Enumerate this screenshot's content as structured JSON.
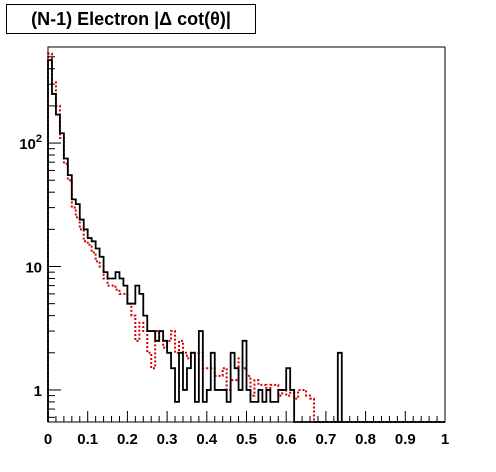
{
  "chart_data": {
    "type": "histogram",
    "title": "(N-1) Electron |Δ cot(θ)|",
    "xlabel": "",
    "ylabel": "",
    "xlim": [
      0,
      1
    ],
    "ylim": [
      0.55,
      600
    ],
    "yscale": "log",
    "grid": false,
    "legend": "none",
    "x_ticks": [
      {
        "v": 0,
        "label": "0"
      },
      {
        "v": 0.1,
        "label": "0.1"
      },
      {
        "v": 0.2,
        "label": "0.2"
      },
      {
        "v": 0.3,
        "label": "0.3"
      },
      {
        "v": 0.4,
        "label": "0.4"
      },
      {
        "v": 0.5,
        "label": "0.5"
      },
      {
        "v": 0.6,
        "label": "0.6"
      },
      {
        "v": 0.7,
        "label": "0.7"
      },
      {
        "v": 0.8,
        "label": "0.8"
      },
      {
        "v": 0.9,
        "label": "0.9"
      },
      {
        "v": 1,
        "label": "1"
      }
    ],
    "y_ticks": [
      {
        "v": 1,
        "label": "1"
      },
      {
        "v": 10,
        "label": "10"
      },
      {
        "v": 100,
        "label": "10^2"
      }
    ],
    "bin_width": 0.01,
    "series": [
      {
        "color": "#000000",
        "style": "solid",
        "values": [
          470,
          250,
          170,
          120,
          75,
          55,
          35,
          32,
          24,
          20,
          17,
          16,
          14,
          12,
          9,
          8,
          8,
          9,
          8,
          7,
          5,
          5,
          7,
          6,
          4,
          3,
          3,
          2.5,
          3,
          2.5,
          2,
          1.5,
          0.8,
          2,
          1,
          1.5,
          2,
          0.8,
          3,
          0.8,
          1,
          2,
          1,
          1,
          1,
          0.8,
          2,
          1.5,
          1,
          2.5,
          1,
          0.8,
          0.8,
          1,
          0.8,
          1,
          0.8,
          0.8,
          1,
          1,
          1.5,
          1,
          0,
          0,
          0,
          0,
          0,
          0,
          0,
          0,
          0,
          0,
          0,
          0,
          0,
          0,
          0,
          0,
          0,
          0,
          0,
          0,
          0,
          0,
          0,
          0,
          0,
          0,
          0,
          0,
          0,
          0,
          0,
          0,
          0,
          0,
          0,
          0,
          0,
          0
        ],
        "spikes": [
          {
            "x": 0.73,
            "value": 2
          }
        ]
      },
      {
        "color": "#d40000",
        "style": "dotted",
        "values": [
          530,
          310,
          200,
          110,
          68,
          50,
          30,
          25,
          20,
          16,
          15,
          13,
          11,
          10,
          8,
          7,
          7,
          6.5,
          6,
          6,
          5,
          4,
          2.5,
          3.5,
          3,
          2,
          1.5,
          3,
          2.5,
          2.2,
          2.5,
          3,
          2,
          2.5,
          2,
          1.8,
          2,
          2,
          2,
          1.5,
          1.5,
          1.5,
          1.3,
          1.3,
          1.5,
          1,
          1.2,
          1.2,
          1.8,
          1.5,
          1.3,
          0.9,
          1.2,
          1.1,
          1.1,
          1,
          1.1,
          1.1,
          0.9,
          1,
          0.9,
          0.95,
          0.85,
          1,
          1,
          0.9,
          0.85,
          0,
          0,
          0,
          0,
          0,
          0,
          0,
          0,
          0,
          0,
          0,
          0,
          0,
          0,
          0,
          0,
          0,
          0,
          0,
          0,
          0,
          0,
          0,
          0,
          0,
          0,
          0,
          0,
          0,
          0,
          0,
          0,
          0
        ]
      }
    ]
  }
}
